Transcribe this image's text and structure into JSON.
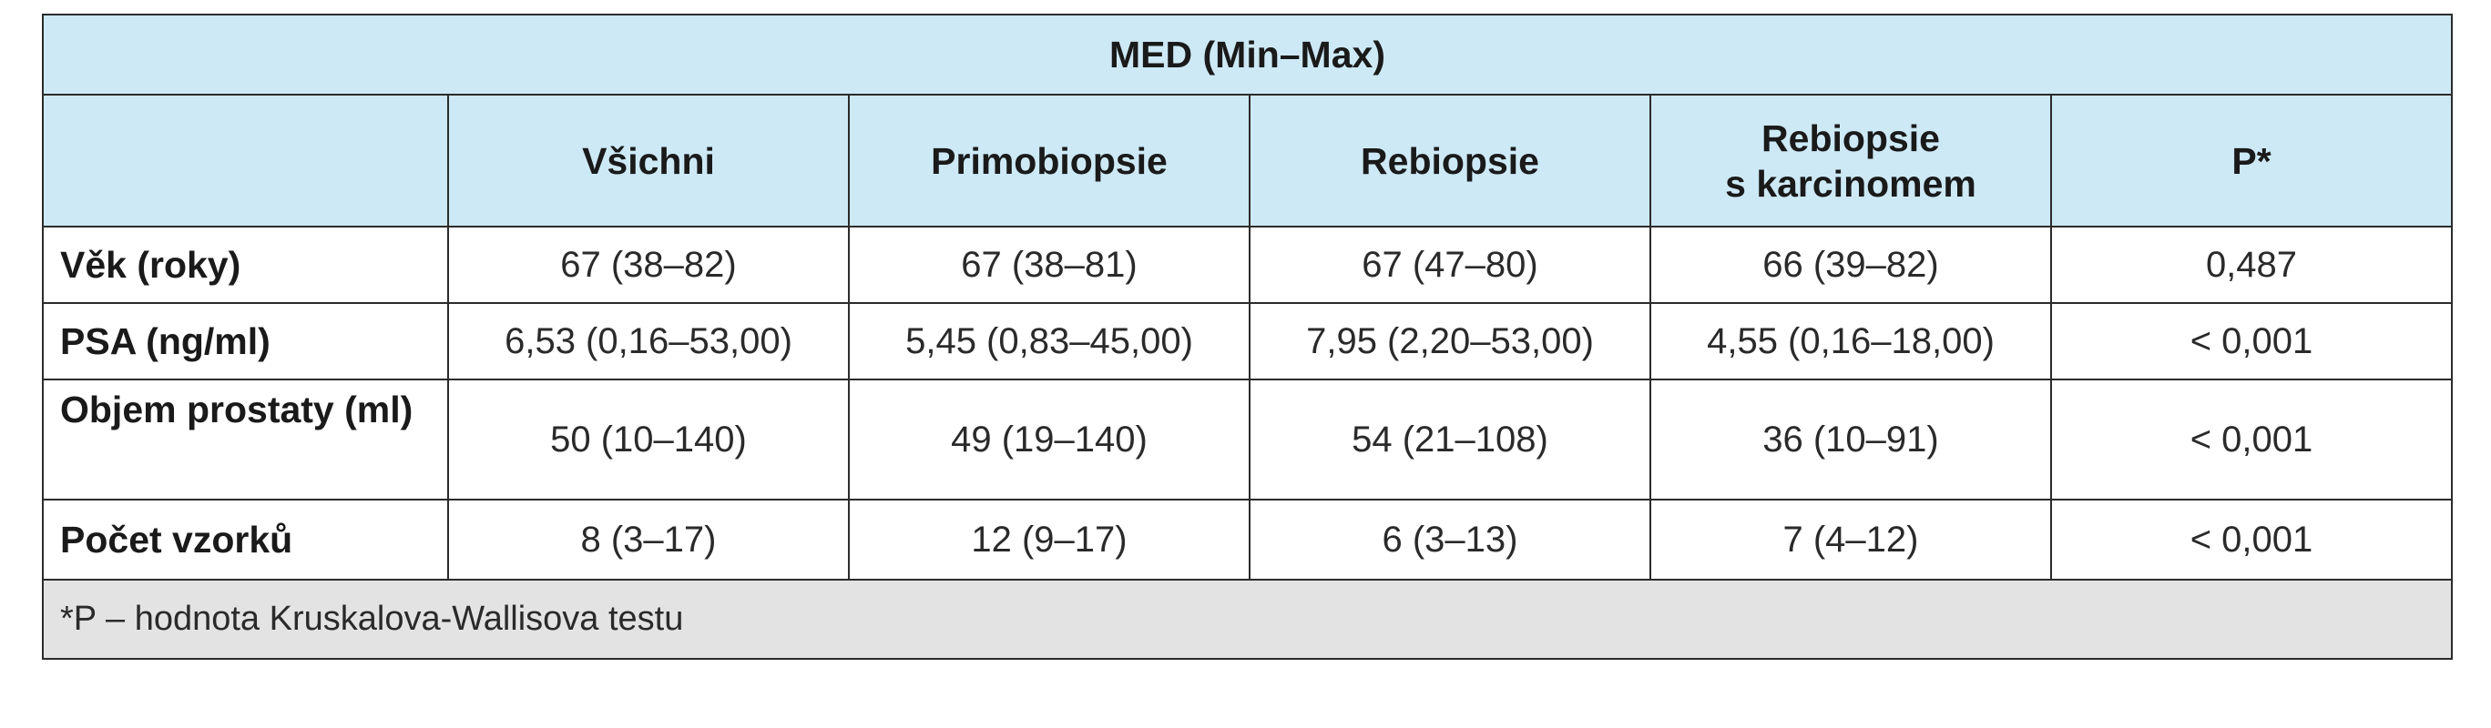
{
  "table": {
    "group_header": "MED (Min–Max)",
    "columns": [
      "",
      "Všichni",
      "Primobiopsie",
      "Rebiopsie",
      "Rebiopsie\ns karcinomem",
      "P*"
    ],
    "rows": [
      {
        "label": "Věk (roky)",
        "values": [
          "67 (38–82)",
          "67 (38–81)",
          "67 (47–80)",
          "66 (39–82)",
          "0,487"
        ]
      },
      {
        "label": "PSA (ng/ml)",
        "values": [
          "6,53 (0,16–53,00)",
          "5,45 (0,83–45,00)",
          "7,95 (2,20–53,00)",
          "4,55 (0,16–18,00)",
          "< 0,001"
        ]
      },
      {
        "label": "Objem prostaty (ml)",
        "values": [
          "50 (10–140)",
          "49 (19–140)",
          "54 (21–108)",
          "36 (10–91)",
          "< 0,001"
        ]
      },
      {
        "label": "Počet vzorků",
        "values": [
          "8 (3–17)",
          "12 (9–17)",
          "6 (3–13)",
          "7 (4–12)",
          "< 0,001"
        ]
      }
    ],
    "footnote": "*P – hodnota Kruskalova-Wallisova testu"
  }
}
